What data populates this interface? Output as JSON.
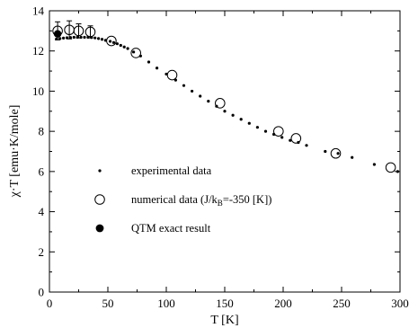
{
  "chart_data": {
    "type": "scatter",
    "xlabel": "T [K]",
    "ylabel": "χ·T [emu·K/mole]",
    "xlim": [
      0,
      300
    ],
    "ylim": [
      0,
      14
    ],
    "x_ticks": [
      0,
      50,
      100,
      150,
      200,
      250,
      300
    ],
    "y_ticks": [
      0,
      2,
      4,
      6,
      8,
      10,
      12,
      14
    ],
    "grid": false,
    "legend": {
      "placement": "lower-left",
      "entries": [
        {
          "marker": "small-dot",
          "label_main": "experimental data",
          "label_sub": ""
        },
        {
          "marker": "open-circle",
          "label_main": "numerical data (J/k",
          "label_sub": "B",
          "label_tail": "=-350 [K])"
        },
        {
          "marker": "filled-circle",
          "label_main": "QTM exact result",
          "label_sub": ""
        }
      ]
    },
    "series": [
      {
        "marker": "small-dot",
        "x": [
          6,
          9,
          12,
          15,
          18,
          21,
          24,
          27,
          30,
          33,
          36,
          39,
          42,
          45,
          48,
          52,
          55,
          58,
          61,
          64,
          67,
          72,
          78,
          85,
          92,
          100,
          108,
          115,
          122,
          129,
          136,
          143,
          150,
          157,
          164,
          171,
          178,
          185,
          192,
          199,
          206,
          213,
          220,
          236,
          247,
          259,
          278,
          298
        ],
        "y": [
          12.6,
          12.62,
          12.64,
          12.66,
          12.67,
          12.68,
          12.68,
          12.68,
          12.68,
          12.68,
          12.67,
          12.65,
          12.62,
          12.58,
          12.53,
          12.48,
          12.42,
          12.36,
          12.28,
          12.2,
          12.12,
          11.95,
          11.75,
          11.45,
          11.15,
          10.85,
          10.55,
          10.28,
          10.0,
          9.75,
          9.5,
          9.25,
          9.0,
          8.8,
          8.6,
          8.4,
          8.2,
          8.0,
          7.85,
          7.7,
          7.55,
          7.45,
          7.3,
          7.0,
          6.9,
          6.7,
          6.35,
          6.0
        ]
      },
      {
        "marker": "open-circle",
        "x": [
          7,
          17,
          25,
          35,
          53,
          74,
          105,
          146,
          196,
          211,
          245,
          292
        ],
        "y": [
          13.0,
          13.05,
          13.0,
          12.95,
          12.5,
          11.9,
          10.8,
          9.4,
          8.0,
          7.65,
          6.9,
          6.2
        ],
        "err": [
          0.45,
          0.45,
          0.35,
          0.3,
          0,
          0,
          0,
          0,
          0,
          0,
          0,
          0
        ]
      },
      {
        "marker": "filled-circle",
        "x": [
          7
        ],
        "y": [
          12.85
        ]
      }
    ]
  }
}
